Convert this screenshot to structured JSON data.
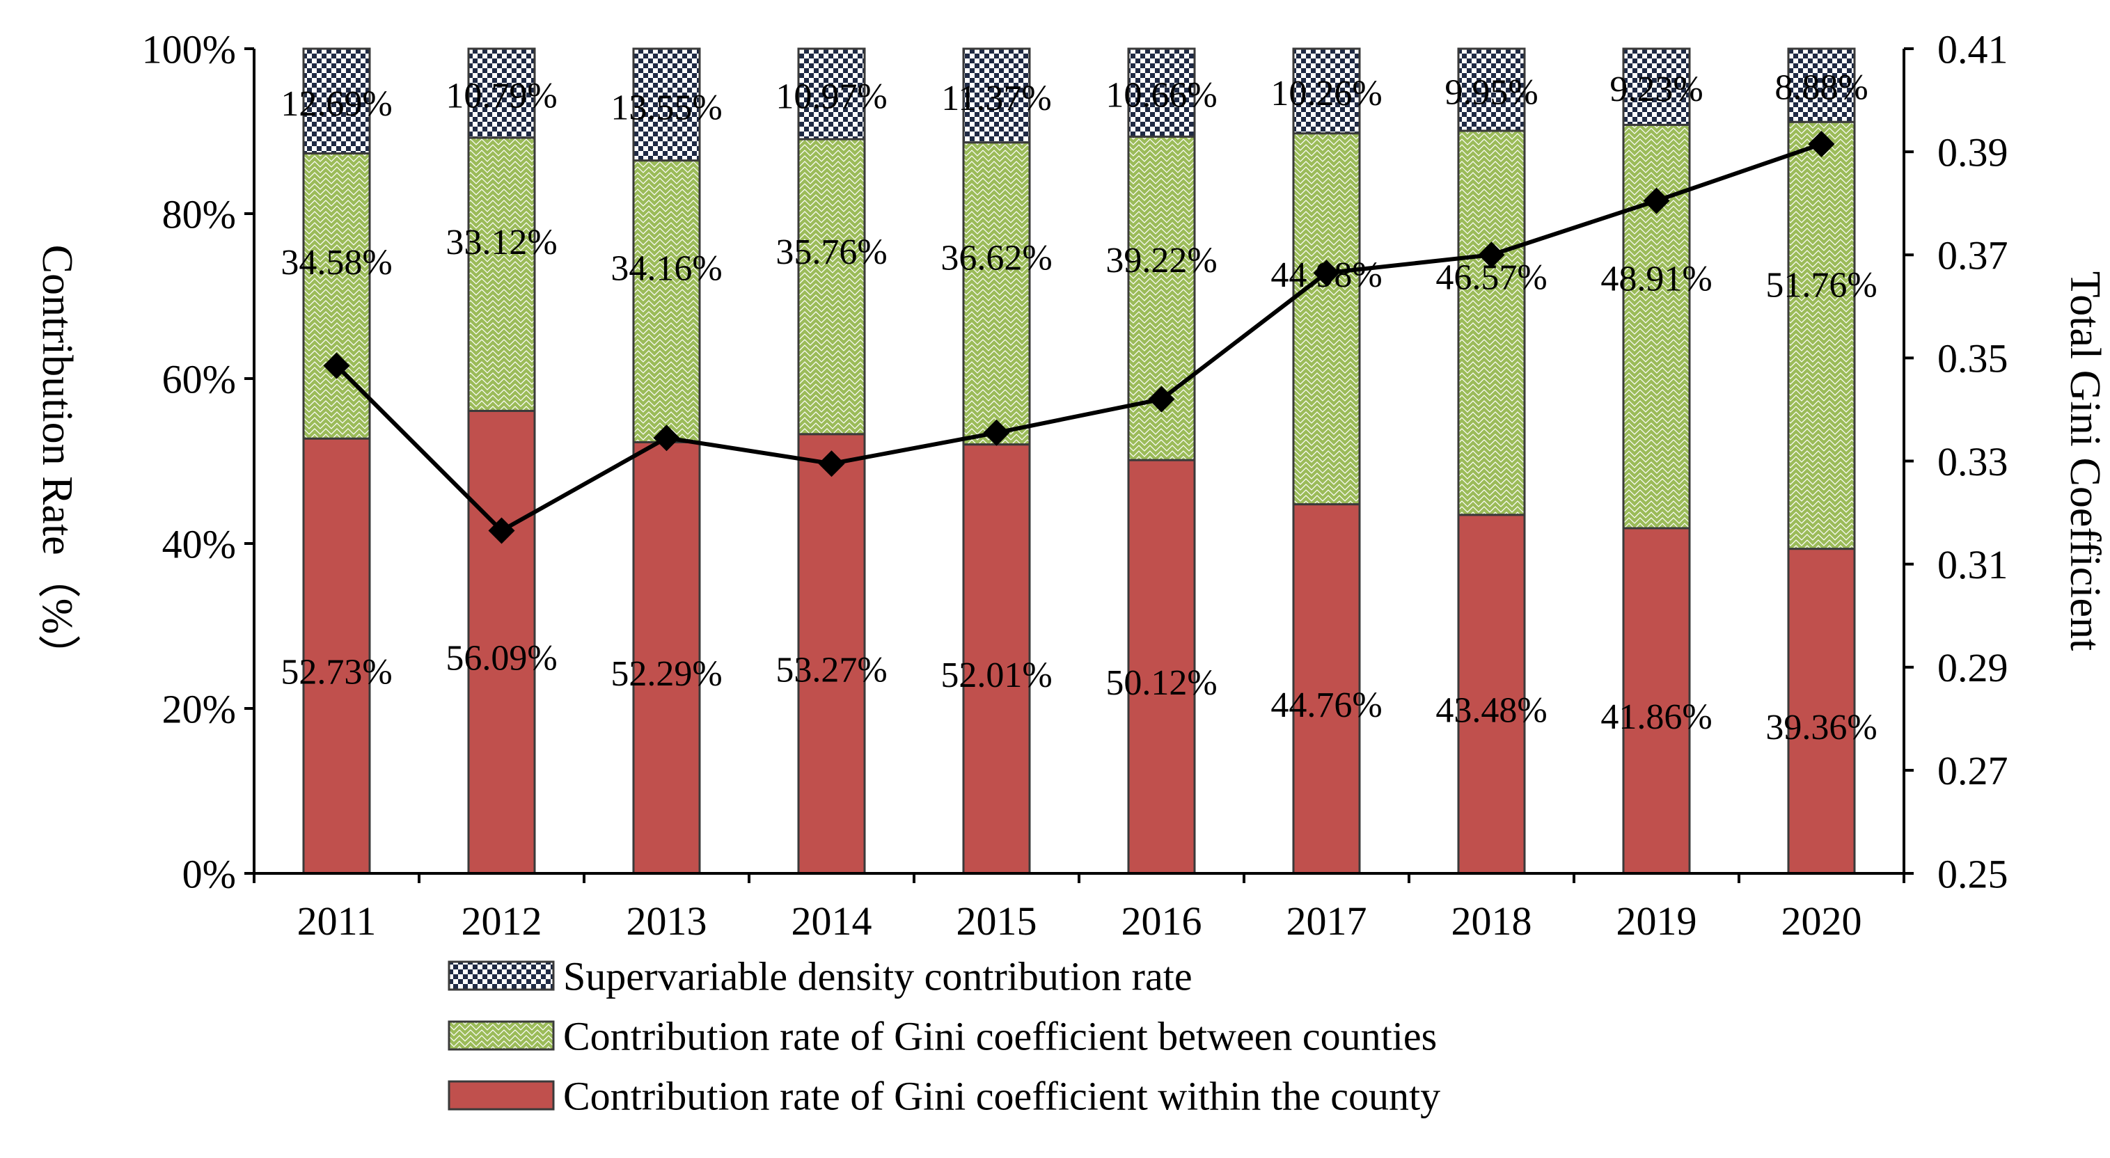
{
  "chart_data": {
    "type": "bar",
    "stacked": true,
    "categories": [
      "2011",
      "2012",
      "2013",
      "2014",
      "2015",
      "2016",
      "2017",
      "2018",
      "2019",
      "2020"
    ],
    "ylabel": "Contribution Rate（%）",
    "y2label": "Total Gini Coefficient",
    "ylim": [
      0,
      100
    ],
    "y2lim": [
      0.25,
      0.41
    ],
    "yticks": [
      "0%",
      "20%",
      "40%",
      "60%",
      "80%",
      "100%"
    ],
    "y2ticks": [
      "0.25",
      "0.27",
      "0.29",
      "0.31",
      "0.33",
      "0.35",
      "0.37",
      "0.39",
      "0.41"
    ],
    "grid": false,
    "legend_position": "bottom",
    "series": [
      {
        "name": "Contribution rate of Gini coefficient within the county",
        "color": "#c0504d",
        "pattern": "solid",
        "values": [
          52.73,
          56.09,
          52.29,
          53.27,
          52.01,
          50.12,
          44.76,
          43.48,
          41.86,
          39.36
        ],
        "labels": [
          "52.73%",
          "56.09%",
          "52.29%",
          "53.27%",
          "52.01%",
          "50.12%",
          "44.76%",
          "43.48%",
          "41.86%",
          "39.36%"
        ]
      },
      {
        "name": "Contribution rate of Gini coefficient between counties",
        "color": "#9bbb59",
        "pattern": "diagonal-zigzag",
        "values": [
          34.58,
          33.12,
          34.16,
          35.76,
          36.62,
          39.22,
          44.98,
          46.57,
          48.91,
          51.76
        ],
        "labels": [
          "34.58%",
          "33.12%",
          "34.16%",
          "35.76%",
          "36.62%",
          "39.22%",
          "44.98%",
          "46.57%",
          "48.91%",
          "51.76%"
        ]
      },
      {
        "name": "Supervariable density contribution rate",
        "color": "#1f2a44",
        "pattern": "checker",
        "values": [
          12.69,
          10.79,
          13.55,
          10.97,
          11.37,
          10.66,
          10.26,
          9.95,
          9.23,
          8.88
        ],
        "labels": [
          "12.69%",
          "10.79%",
          "13.55%",
          "10.97%",
          "11.37%",
          "10.66%",
          "10.26%",
          "9.95%",
          "9.23%",
          "8.88%"
        ]
      }
    ],
    "line": {
      "axis": "right",
      "color": "#000000",
      "marker": "diamond",
      "values": [
        0.3485,
        0.3165,
        0.3345,
        0.3295,
        0.3355,
        0.342,
        0.3665,
        0.37,
        0.3805,
        0.3915
      ]
    },
    "legend_order": [
      2,
      1,
      0
    ]
  }
}
